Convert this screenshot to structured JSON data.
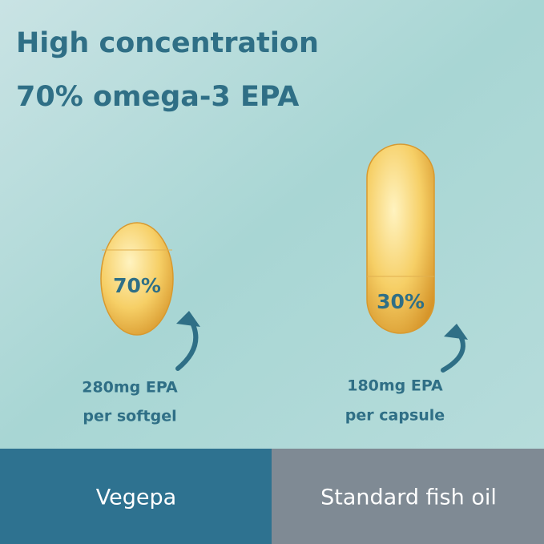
{
  "header": {
    "title_lines": [
      "High concentration",
      "70% omega-3 EPA"
    ]
  },
  "products": [
    {
      "percent": "70%",
      "amount": "280mg EPA",
      "unit": "per softgel",
      "name": "Vegepa"
    },
    {
      "percent": "30%",
      "amount": "180mg EPA",
      "unit": "per capsule",
      "name": "Standard fish oil"
    }
  ]
}
